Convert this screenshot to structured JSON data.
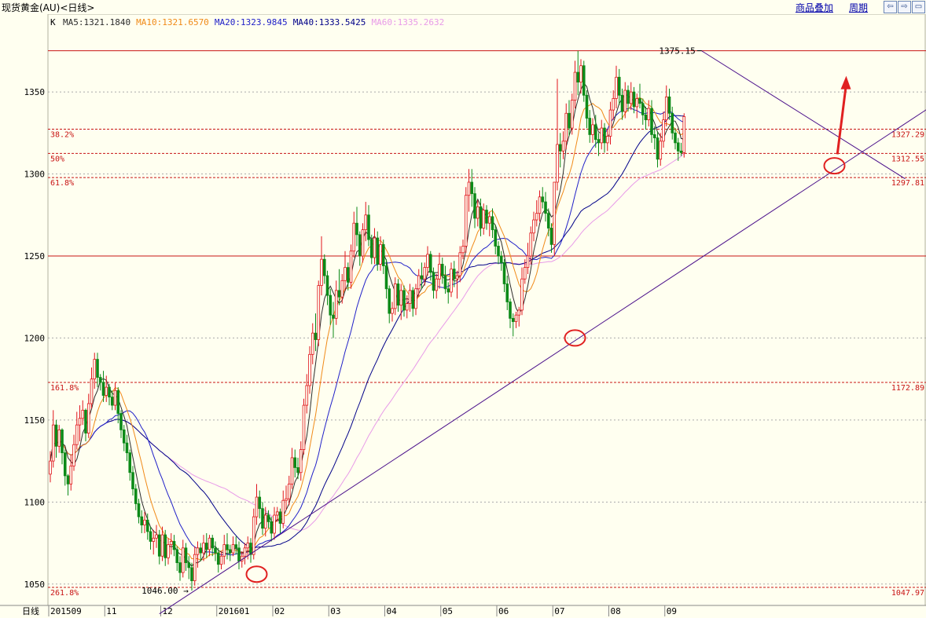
{
  "header": {
    "instrument": "现货黄金(AU)<日线>",
    "links": [
      "商品叠加",
      "周期"
    ],
    "nav_icons": [
      "arrow-left-icon",
      "arrow-right-icon",
      "window-icon"
    ]
  },
  "colors": {
    "background": "#fffff0",
    "up_candle": "#e0161d",
    "down_candle": "#0c8a18",
    "ma5": "#2c2c2c",
    "ma10": "#f08a18",
    "ma20": "#2020c8",
    "ma40": "#000088",
    "ma60": "#e89ae8",
    "level_line": "#c81414",
    "annotation": "#e02020"
  },
  "chart_data": {
    "type": "candlestick",
    "indicator_label": "K",
    "legend": [
      {
        "name": "MA5",
        "value": "1321.1840",
        "color": "#2c2c2c"
      },
      {
        "name": "MA10",
        "value": "1321.6570",
        "color": "#f08a18"
      },
      {
        "name": "MA20",
        "value": "1323.9845",
        "color": "#2020c8"
      },
      {
        "name": "MA40",
        "value": "1333.5425",
        "color": "#000088"
      },
      {
        "name": "MA60",
        "value": "1335.2632",
        "color": "#e89ae8"
      }
    ],
    "period_label": "日线",
    "x_labels": [
      "201509",
      "11",
      "12",
      "201601",
      "02",
      "03",
      "04",
      "05",
      "06",
      "07",
      "08",
      "09"
    ],
    "y_ticks": [
      1050,
      1100,
      1150,
      1200,
      1250,
      1300,
      1350
    ],
    "ylim": [
      1036,
      1385
    ],
    "fib_levels": [
      {
        "label": "38.2%",
        "value": 1327.29
      },
      {
        "label": "50%",
        "value": 1312.55
      },
      {
        "label": "61.8%",
        "value": 1297.81
      },
      {
        "label": "161.8%",
        "value": 1172.89
      },
      {
        "label": "261.8%",
        "value": 1047.97
      }
    ],
    "horizontal_lines": [
      1375.15,
      1250
    ],
    "annotations": [
      {
        "text": "1375.15",
        "x": 221,
        "y": 1375.15
      },
      {
        "text": "1046.00",
        "x": 49,
        "y": 1046.0
      }
    ],
    "trendlines": [
      {
        "name": "support",
        "from": [
          49,
          1046
        ],
        "to": [
          275,
          1313
        ]
      },
      {
        "name": "resistance",
        "from": [
          221,
          1375
        ],
        "to": [
          275,
          1314
        ]
      }
    ],
    "markers": [
      {
        "type": "circle",
        "x": 70,
        "y": 1056
      },
      {
        "type": "circle",
        "x": 178,
        "y": 1200
      },
      {
        "type": "circle",
        "x": 266,
        "y": 1305
      },
      {
        "type": "arrow",
        "from": [
          267,
          1312
        ],
        "to": [
          270,
          1355
        ]
      }
    ],
    "ma_colors": {
      "ma5": "#2c2c2c",
      "ma10": "#f08a18",
      "ma20": "#2020c8",
      "ma40": "#000088",
      "ma60": "#e89ae8"
    },
    "ohlc": [
      [
        1117,
        1131,
        1112,
        1125
      ],
      [
        1125,
        1156,
        1121,
        1147
      ],
      [
        1147,
        1150,
        1127,
        1134
      ],
      [
        1134,
        1147,
        1130,
        1144
      ],
      [
        1144,
        1145,
        1123,
        1130
      ],
      [
        1130,
        1132,
        1110,
        1116
      ],
      [
        1116,
        1117,
        1104,
        1111
      ],
      [
        1111,
        1129,
        1107,
        1122
      ],
      [
        1122,
        1141,
        1119,
        1135
      ],
      [
        1135,
        1155,
        1132,
        1147
      ],
      [
        1147,
        1159,
        1137,
        1151
      ],
      [
        1151,
        1162,
        1147,
        1156
      ],
      [
        1156,
        1157,
        1137,
        1142
      ],
      [
        1142,
        1166,
        1139,
        1160
      ],
      [
        1160,
        1182,
        1157,
        1175
      ],
      [
        1175,
        1191,
        1169,
        1187
      ],
      [
        1187,
        1191,
        1170,
        1176
      ],
      [
        1176,
        1178,
        1168,
        1173
      ],
      [
        1173,
        1180,
        1161,
        1165
      ],
      [
        1165,
        1177,
        1161,
        1170
      ],
      [
        1170,
        1172,
        1159,
        1164
      ],
      [
        1164,
        1168,
        1156,
        1159
      ],
      [
        1159,
        1173,
        1156,
        1168
      ],
      [
        1168,
        1170,
        1148,
        1154
      ],
      [
        1154,
        1156,
        1139,
        1144
      ],
      [
        1144,
        1147,
        1131,
        1136
      ],
      [
        1136,
        1141,
        1125,
        1130
      ],
      [
        1130,
        1132,
        1113,
        1118
      ],
      [
        1118,
        1122,
        1104,
        1108
      ],
      [
        1108,
        1111,
        1095,
        1099
      ],
      [
        1099,
        1102,
        1087,
        1091
      ],
      [
        1091,
        1095,
        1081,
        1086
      ],
      [
        1086,
        1094,
        1081,
        1089
      ],
      [
        1089,
        1093,
        1077,
        1082
      ],
      [
        1082,
        1085,
        1071,
        1076
      ],
      [
        1076,
        1083,
        1068,
        1078
      ],
      [
        1078,
        1086,
        1072,
        1080
      ],
      [
        1080,
        1083,
        1062,
        1067
      ],
      [
        1067,
        1085,
        1064,
        1080
      ],
      [
        1080,
        1083,
        1061,
        1066
      ],
      [
        1066,
        1078,
        1062,
        1074
      ],
      [
        1074,
        1081,
        1068,
        1076
      ],
      [
        1076,
        1080,
        1067,
        1071
      ],
      [
        1071,
        1073,
        1058,
        1063
      ],
      [
        1063,
        1067,
        1052,
        1057
      ],
      [
        1057,
        1077,
        1054,
        1072
      ],
      [
        1072,
        1075,
        1058,
        1063
      ],
      [
        1063,
        1067,
        1053,
        1060
      ],
      [
        1060,
        1063,
        1046,
        1052
      ],
      [
        1052,
        1073,
        1049,
        1068
      ],
      [
        1068,
        1076,
        1060,
        1072
      ],
      [
        1072,
        1075,
        1064,
        1069
      ],
      [
        1069,
        1080,
        1064,
        1075
      ],
      [
        1075,
        1081,
        1066,
        1071
      ],
      [
        1071,
        1080,
        1067,
        1078
      ],
      [
        1078,
        1080,
        1067,
        1072
      ],
      [
        1072,
        1076,
        1064,
        1069
      ],
      [
        1069,
        1072,
        1057,
        1062
      ],
      [
        1062,
        1070,
        1059,
        1067
      ],
      [
        1067,
        1080,
        1062,
        1074
      ],
      [
        1074,
        1081,
        1065,
        1071
      ],
      [
        1071,
        1074,
        1064,
        1069
      ],
      [
        1069,
        1079,
        1067,
        1074
      ],
      [
        1074,
        1079,
        1068,
        1072
      ],
      [
        1072,
        1076,
        1059,
        1064
      ],
      [
        1064,
        1070,
        1060,
        1067
      ],
      [
        1067,
        1075,
        1062,
        1072
      ],
      [
        1072,
        1079,
        1065,
        1075
      ],
      [
        1075,
        1078,
        1063,
        1068
      ],
      [
        1068,
        1096,
        1065,
        1091
      ],
      [
        1091,
        1111,
        1086,
        1103
      ],
      [
        1103,
        1107,
        1090,
        1096
      ],
      [
        1096,
        1100,
        1080,
        1084
      ],
      [
        1084,
        1097,
        1079,
        1092
      ],
      [
        1092,
        1095,
        1084,
        1088
      ],
      [
        1088,
        1091,
        1076,
        1081
      ],
      [
        1081,
        1097,
        1077,
        1092
      ],
      [
        1092,
        1097,
        1088,
        1094
      ],
      [
        1094,
        1096,
        1081,
        1087
      ],
      [
        1087,
        1107,
        1084,
        1101
      ],
      [
        1101,
        1110,
        1095,
        1102
      ],
      [
        1102,
        1116,
        1098,
        1111
      ],
      [
        1111,
        1133,
        1108,
        1127
      ],
      [
        1127,
        1132,
        1115,
        1121
      ],
      [
        1121,
        1127,
        1114,
        1118
      ],
      [
        1118,
        1137,
        1113,
        1132
      ],
      [
        1132,
        1163,
        1129,
        1159
      ],
      [
        1159,
        1178,
        1154,
        1171
      ],
      [
        1171,
        1195,
        1166,
        1190
      ],
      [
        1190,
        1209,
        1184,
        1203
      ],
      [
        1203,
        1215,
        1192,
        1199
      ],
      [
        1199,
        1235,
        1195,
        1232
      ],
      [
        1232,
        1262,
        1226,
        1248
      ],
      [
        1248,
        1251,
        1233,
        1238
      ],
      [
        1238,
        1241,
        1220,
        1226
      ],
      [
        1226,
        1230,
        1208,
        1214
      ],
      [
        1214,
        1222,
        1200,
        1212
      ],
      [
        1212,
        1235,
        1208,
        1229
      ],
      [
        1229,
        1242,
        1220,
        1225
      ],
      [
        1225,
        1239,
        1221,
        1235
      ],
      [
        1235,
        1253,
        1229,
        1243
      ],
      [
        1243,
        1246,
        1229,
        1234
      ],
      [
        1234,
        1257,
        1230,
        1253
      ],
      [
        1253,
        1277,
        1249,
        1270
      ],
      [
        1270,
        1280,
        1256,
        1263
      ],
      [
        1263,
        1265,
        1244,
        1250
      ],
      [
        1250,
        1270,
        1246,
        1266
      ],
      [
        1266,
        1283,
        1259,
        1275
      ],
      [
        1275,
        1281,
        1256,
        1260
      ],
      [
        1260,
        1263,
        1245,
        1249
      ],
      [
        1249,
        1267,
        1245,
        1261
      ],
      [
        1261,
        1265,
        1241,
        1245
      ],
      [
        1245,
        1262,
        1241,
        1257
      ],
      [
        1257,
        1260,
        1239,
        1244
      ],
      [
        1244,
        1248,
        1224,
        1230
      ],
      [
        1230,
        1232,
        1209,
        1215
      ],
      [
        1215,
        1222,
        1210,
        1218
      ],
      [
        1218,
        1237,
        1214,
        1233
      ],
      [
        1233,
        1236,
        1216,
        1220
      ],
      [
        1220,
        1233,
        1211,
        1229
      ],
      [
        1229,
        1232,
        1213,
        1217
      ],
      [
        1217,
        1226,
        1212,
        1221
      ],
      [
        1221,
        1233,
        1216,
        1229
      ],
      [
        1229,
        1231,
        1213,
        1218
      ],
      [
        1218,
        1233,
        1214,
        1230
      ],
      [
        1230,
        1242,
        1225,
        1238
      ],
      [
        1238,
        1246,
        1230,
        1236
      ],
      [
        1236,
        1246,
        1232,
        1243
      ],
      [
        1243,
        1256,
        1238,
        1251
      ],
      [
        1251,
        1253,
        1235,
        1240
      ],
      [
        1240,
        1243,
        1224,
        1229
      ],
      [
        1229,
        1239,
        1224,
        1236
      ],
      [
        1236,
        1252,
        1230,
        1245
      ],
      [
        1245,
        1249,
        1233,
        1238
      ],
      [
        1238,
        1244,
        1227,
        1230
      ],
      [
        1230,
        1234,
        1221,
        1228
      ],
      [
        1228,
        1246,
        1225,
        1242
      ],
      [
        1242,
        1247,
        1231,
        1236
      ],
      [
        1236,
        1241,
        1224,
        1238
      ],
      [
        1238,
        1256,
        1234,
        1252
      ],
      [
        1252,
        1260,
        1248,
        1256
      ],
      [
        1256,
        1292,
        1252,
        1287
      ],
      [
        1287,
        1303,
        1277,
        1295
      ],
      [
        1295,
        1303,
        1280,
        1288
      ],
      [
        1288,
        1292,
        1267,
        1273
      ],
      [
        1273,
        1284,
        1268,
        1280
      ],
      [
        1280,
        1285,
        1262,
        1267
      ],
      [
        1267,
        1282,
        1263,
        1278
      ],
      [
        1278,
        1281,
        1266,
        1270
      ],
      [
        1270,
        1277,
        1262,
        1274
      ],
      [
        1274,
        1279,
        1261,
        1266
      ],
      [
        1266,
        1269,
        1251,
        1256
      ],
      [
        1256,
        1259,
        1245,
        1250
      ],
      [
        1250,
        1253,
        1241,
        1246
      ],
      [
        1246,
        1248,
        1228,
        1233
      ],
      [
        1233,
        1238,
        1217,
        1222
      ],
      [
        1222,
        1224,
        1206,
        1212
      ],
      [
        1212,
        1215,
        1201,
        1210
      ],
      [
        1210,
        1216,
        1206,
        1214
      ],
      [
        1214,
        1219,
        1207,
        1217
      ],
      [
        1217,
        1243,
        1214,
        1236
      ],
      [
        1236,
        1248,
        1233,
        1243
      ],
      [
        1243,
        1258,
        1239,
        1250
      ],
      [
        1250,
        1268,
        1245,
        1264
      ],
      [
        1264,
        1277,
        1259,
        1272
      ],
      [
        1272,
        1284,
        1268,
        1276
      ],
      [
        1276,
        1290,
        1271,
        1286
      ],
      [
        1286,
        1292,
        1279,
        1283
      ],
      [
        1283,
        1289,
        1271,
        1276
      ],
      [
        1276,
        1279,
        1262,
        1267
      ],
      [
        1267,
        1270,
        1252,
        1257
      ],
      [
        1257,
        1295,
        1250,
        1295
      ],
      [
        1295,
        1358,
        1290,
        1318
      ],
      [
        1318,
        1325,
        1304,
        1314
      ],
      [
        1314,
        1326,
        1309,
        1320
      ],
      [
        1320,
        1343,
        1315,
        1337
      ],
      [
        1337,
        1345,
        1323,
        1328
      ],
      [
        1328,
        1349,
        1324,
        1345
      ],
      [
        1345,
        1369,
        1340,
        1362
      ],
      [
        1362,
        1375,
        1348,
        1356
      ],
      [
        1356,
        1370,
        1349,
        1366
      ],
      [
        1366,
        1369,
        1344,
        1348
      ],
      [
        1348,
        1351,
        1328,
        1334
      ],
      [
        1334,
        1339,
        1319,
        1324
      ],
      [
        1324,
        1334,
        1319,
        1330
      ],
      [
        1330,
        1336,
        1316,
        1321
      ],
      [
        1321,
        1325,
        1311,
        1319
      ],
      [
        1319,
        1333,
        1315,
        1328
      ],
      [
        1328,
        1331,
        1313,
        1319
      ],
      [
        1319,
        1327,
        1314,
        1323
      ],
      [
        1323,
        1344,
        1318,
        1339
      ],
      [
        1339,
        1351,
        1333,
        1346
      ],
      [
        1346,
        1366,
        1340,
        1359
      ],
      [
        1359,
        1364,
        1342,
        1348
      ],
      [
        1348,
        1352,
        1333,
        1338
      ],
      [
        1338,
        1356,
        1334,
        1351
      ],
      [
        1351,
        1354,
        1338,
        1343
      ],
      [
        1343,
        1356,
        1339,
        1350
      ],
      [
        1350,
        1353,
        1337,
        1341
      ],
      [
        1341,
        1349,
        1334,
        1346
      ],
      [
        1346,
        1355,
        1340,
        1343
      ],
      [
        1343,
        1346,
        1330,
        1336
      ],
      [
        1336,
        1341,
        1327,
        1333
      ],
      [
        1333,
        1345,
        1329,
        1340
      ],
      [
        1340,
        1345,
        1319,
        1324
      ],
      [
        1324,
        1329,
        1315,
        1322
      ],
      [
        1322,
        1326,
        1304,
        1309
      ],
      [
        1309,
        1325,
        1305,
        1320
      ],
      [
        1320,
        1338,
        1316,
        1333
      ],
      [
        1333,
        1354,
        1329,
        1347
      ],
      [
        1347,
        1352,
        1333,
        1337
      ],
      [
        1337,
        1341,
        1321,
        1325
      ],
      [
        1325,
        1328,
        1315,
        1319
      ],
      [
        1319,
        1322,
        1308,
        1314
      ],
      [
        1314,
        1319,
        1311,
        1313
      ],
      [
        1313,
        1337,
        1310,
        1335
      ]
    ]
  }
}
